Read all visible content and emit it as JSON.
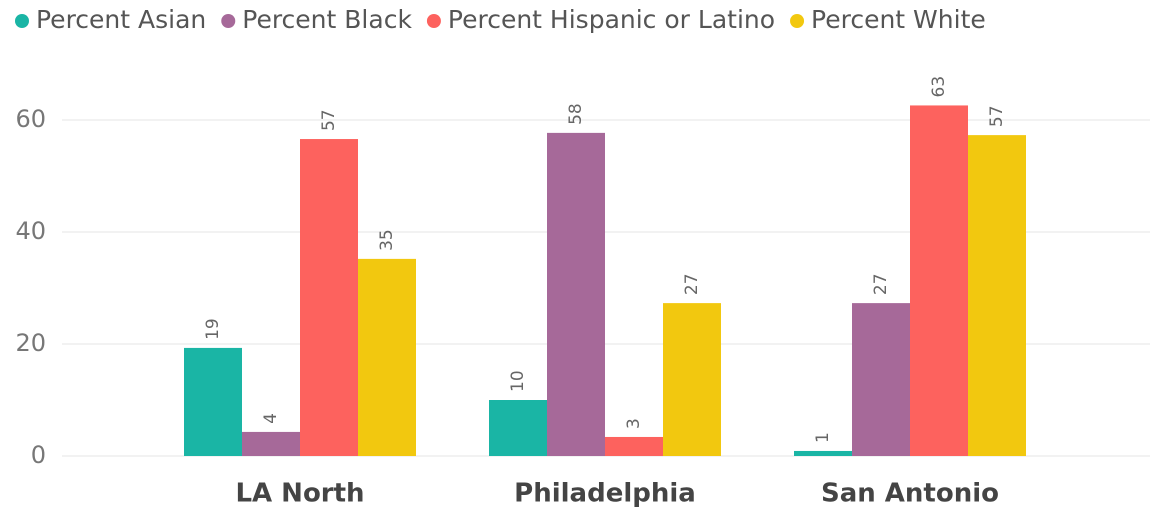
{
  "chart_data": {
    "type": "bar",
    "categories": [
      "LA North",
      "Philadelphia",
      "San Antonio"
    ],
    "series": [
      {
        "name": "Percent Asian",
        "color": "#1ab5a5",
        "values": [
          19.3,
          10,
          0.9
        ],
        "value_labels": [
          "19",
          "10",
          "1"
        ]
      },
      {
        "name": "Percent Black",
        "color": "#a66999",
        "values": [
          4.3,
          57.7,
          27.3
        ],
        "value_labels": [
          "4",
          "58",
          "27"
        ]
      },
      {
        "name": "Percent Hispanic or Latino",
        "color": "#fd625e",
        "values": [
          56.6,
          3.4,
          62.6
        ],
        "value_labels": [
          "57",
          "3",
          "63"
        ]
      },
      {
        "name": "Percent White",
        "color": "#f2c80f",
        "values": [
          35.2,
          27.3,
          57.3
        ],
        "value_labels": [
          "35",
          "27",
          "57"
        ]
      }
    ],
    "ylim": [
      0,
      70
    ],
    "yticks": [
      0,
      20,
      40,
      60
    ],
    "grid": true
  }
}
